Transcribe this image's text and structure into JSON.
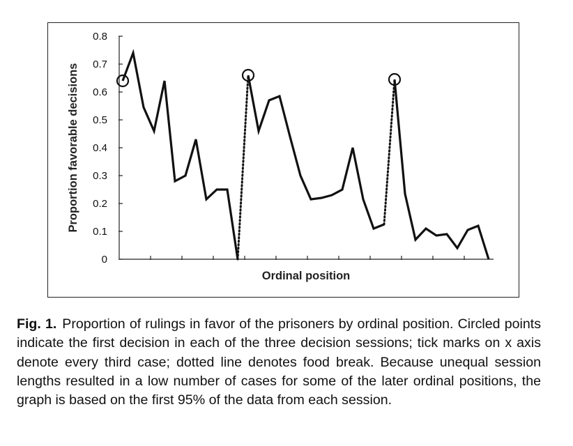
{
  "chart_data": {
    "type": "line",
    "xlabel": "Ordinal position",
    "ylabel": "Proportion favorable decisions",
    "ylim": [
      0,
      0.8
    ],
    "yticks": [
      "0",
      "0.1",
      "0.2",
      "0.3",
      "0.4",
      "0.5",
      "0.6",
      "0.7",
      "0.8"
    ],
    "x_ticks_every": 3,
    "grid": false,
    "series": [
      {
        "values": [
          0.64,
          0.74,
          0.545,
          0.46,
          0.64,
          0.28,
          0.3,
          0.43,
          0.215,
          0.25,
          0.25,
          0.0,
          0.66,
          0.46,
          0.57,
          0.585,
          0.44,
          0.3,
          0.215,
          0.22,
          0.23,
          0.25,
          0.4,
          0.215,
          0.11,
          0.125,
          0.645,
          0.235,
          0.07,
          0.11,
          0.085,
          0.09,
          0.04,
          0.105,
          0.12,
          0.0
        ]
      }
    ],
    "sessions": [
      [
        0,
        11
      ],
      [
        12,
        25
      ],
      [
        26,
        35
      ]
    ],
    "food_breaks": [
      [
        11,
        12
      ],
      [
        25,
        26
      ]
    ],
    "circled_points": [
      0,
      12,
      26
    ]
  },
  "caption": {
    "label": "Fig. 1.",
    "text": "Proportion of rulings in favor of the prisoners by ordinal position. Circled points indicate the first decision in each of the three decision sessions; tick marks on x axis denote every third case; dotted line denotes food break. Because unequal session lengths resulted in a low number of cases for some of the later ordinal positions, the graph is based on the first 95% of the data from each session."
  }
}
